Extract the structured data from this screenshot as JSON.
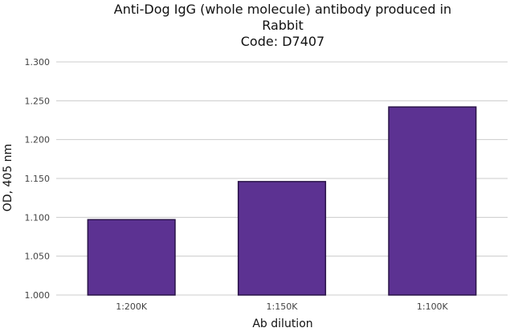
{
  "chart_data": {
    "type": "bar",
    "title_lines": [
      "Anti-Dog IgG (whole molecule) antibody produced in",
      "Rabbit",
      "Code: D7407"
    ],
    "xlabel": "Ab dilution",
    "ylabel": "OD, 405 nm",
    "categories": [
      "1:200K",
      "1:150K",
      "1:100K"
    ],
    "values": [
      1.097,
      1.146,
      1.242
    ],
    "ylim": [
      1.0,
      1.3
    ],
    "yticks": [
      "1.000",
      "1.050",
      "1.100",
      "1.150",
      "1.200",
      "1.250",
      "1.300"
    ],
    "bar_color": "#5c3292",
    "bar_edge_color": "#2a1448",
    "grid": true,
    "legend": "none"
  }
}
